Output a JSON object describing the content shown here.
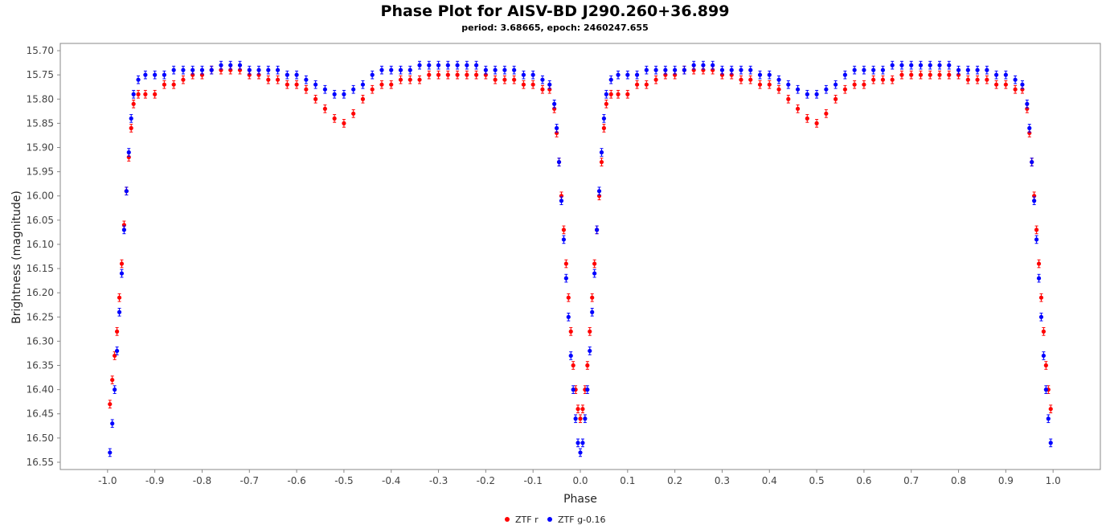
{
  "chart_data": {
    "type": "scatter",
    "title": "Phase Plot for AISV-BD J290.260+36.899",
    "subtitle": "period: 3.68665, epoch: 2460247.655",
    "xlabel": "Phase",
    "ylabel": "Brightness (magnitude)",
    "xlim": [
      -1.1,
      1.1
    ],
    "ylim": [
      16.565,
      15.685
    ],
    "y_inverted": true,
    "x_ticks": [
      -1.0,
      -0.9,
      -0.8,
      -0.7,
      -0.6,
      -0.5,
      -0.4,
      -0.3,
      -0.2,
      -0.1,
      0.0,
      0.1,
      0.2,
      0.3,
      0.4,
      0.5,
      0.6,
      0.7,
      0.8,
      0.9,
      1.0
    ],
    "x_tick_labels": [
      "-1.0",
      "-0.9",
      "-0.8",
      "-0.7",
      "-0.6",
      "-0.5",
      "-0.4",
      "-0.3",
      "-0.2",
      "-0.1",
      "0.0",
      "0.1",
      "0.2",
      "0.3",
      "0.4",
      "0.5",
      "0.6",
      "0.7",
      "0.8",
      "0.9",
      "1.0"
    ],
    "y_ticks": [
      15.7,
      15.75,
      15.8,
      15.85,
      15.9,
      15.95,
      16.0,
      16.05,
      16.1,
      16.15,
      16.2,
      16.25,
      16.3,
      16.35,
      16.4,
      16.45,
      16.5,
      16.55
    ],
    "y_tick_labels": [
      "15.70",
      "15.75",
      "15.80",
      "15.85",
      "15.90",
      "15.95",
      "16.00",
      "16.05",
      "16.10",
      "16.15",
      "16.20",
      "16.25",
      "16.30",
      "16.35",
      "16.40",
      "16.45",
      "16.50",
      "16.55"
    ],
    "grid": false,
    "legend_position": "bottom-center",
    "series": [
      {
        "name": "ZTF r",
        "color": "#ff0000",
        "error": 0.008,
        "points": [
          [
            -0.995,
            16.43
          ],
          [
            -0.99,
            16.38
          ],
          [
            -0.985,
            16.33
          ],
          [
            -0.98,
            16.28
          ],
          [
            -0.975,
            16.21
          ],
          [
            -0.97,
            16.14
          ],
          [
            -0.965,
            16.06
          ],
          [
            -0.96,
            15.99
          ],
          [
            -0.955,
            15.92
          ],
          [
            -0.95,
            15.86
          ],
          [
            -0.945,
            15.81
          ],
          [
            -0.935,
            15.79
          ],
          [
            -0.92,
            15.79
          ],
          [
            -0.9,
            15.79
          ],
          [
            -0.88,
            15.77
          ],
          [
            -0.86,
            15.77
          ],
          [
            -0.84,
            15.76
          ],
          [
            -0.82,
            15.75
          ],
          [
            -0.8,
            15.75
          ],
          [
            -0.78,
            15.74
          ],
          [
            -0.76,
            15.74
          ],
          [
            -0.74,
            15.74
          ],
          [
            -0.72,
            15.74
          ],
          [
            -0.7,
            15.75
          ],
          [
            -0.68,
            15.75
          ],
          [
            -0.66,
            15.76
          ],
          [
            -0.64,
            15.76
          ],
          [
            -0.62,
            15.77
          ],
          [
            -0.6,
            15.77
          ],
          [
            -0.58,
            15.78
          ],
          [
            -0.56,
            15.8
          ],
          [
            -0.54,
            15.82
          ],
          [
            -0.52,
            15.84
          ],
          [
            -0.5,
            15.85
          ],
          [
            -0.48,
            15.83
          ],
          [
            -0.46,
            15.8
          ],
          [
            -0.44,
            15.78
          ],
          [
            -0.42,
            15.77
          ],
          [
            -0.4,
            15.77
          ],
          [
            -0.38,
            15.76
          ],
          [
            -0.36,
            15.76
          ],
          [
            -0.34,
            15.76
          ],
          [
            -0.32,
            15.75
          ],
          [
            -0.3,
            15.75
          ],
          [
            -0.28,
            15.75
          ],
          [
            -0.26,
            15.75
          ],
          [
            -0.24,
            15.75
          ],
          [
            -0.22,
            15.75
          ],
          [
            -0.2,
            15.75
          ],
          [
            -0.18,
            15.76
          ],
          [
            -0.16,
            15.76
          ],
          [
            -0.14,
            15.76
          ],
          [
            -0.12,
            15.77
          ],
          [
            -0.1,
            15.77
          ],
          [
            -0.08,
            15.78
          ],
          [
            -0.065,
            15.78
          ],
          [
            -0.055,
            15.82
          ],
          [
            -0.05,
            15.87
          ],
          [
            -0.045,
            15.93
          ],
          [
            -0.04,
            16.0
          ],
          [
            -0.035,
            16.07
          ],
          [
            -0.03,
            16.14
          ],
          [
            -0.025,
            16.21
          ],
          [
            -0.02,
            16.28
          ],
          [
            -0.015,
            16.35
          ],
          [
            -0.01,
            16.4
          ],
          [
            -0.005,
            16.44
          ],
          [
            0.0,
            16.46
          ],
          [
            0.005,
            16.44
          ],
          [
            0.01,
            16.4
          ],
          [
            0.015,
            16.35
          ],
          [
            0.02,
            16.28
          ],
          [
            0.025,
            16.21
          ],
          [
            0.03,
            16.14
          ],
          [
            0.035,
            16.07
          ],
          [
            0.04,
            16.0
          ],
          [
            0.045,
            15.93
          ],
          [
            0.05,
            15.86
          ],
          [
            0.055,
            15.81
          ],
          [
            0.065,
            15.79
          ],
          [
            0.08,
            15.79
          ],
          [
            0.1,
            15.79
          ],
          [
            0.12,
            15.77
          ],
          [
            0.14,
            15.77
          ],
          [
            0.16,
            15.76
          ],
          [
            0.18,
            15.75
          ],
          [
            0.2,
            15.75
          ],
          [
            0.22,
            15.74
          ],
          [
            0.24,
            15.74
          ],
          [
            0.26,
            15.74
          ],
          [
            0.28,
            15.74
          ],
          [
            0.3,
            15.75
          ],
          [
            0.32,
            15.75
          ],
          [
            0.34,
            15.76
          ],
          [
            0.36,
            15.76
          ],
          [
            0.38,
            15.77
          ],
          [
            0.4,
            15.77
          ],
          [
            0.42,
            15.78
          ],
          [
            0.44,
            15.8
          ],
          [
            0.46,
            15.82
          ],
          [
            0.48,
            15.84
          ],
          [
            0.5,
            15.85
          ],
          [
            0.52,
            15.83
          ],
          [
            0.54,
            15.8
          ],
          [
            0.56,
            15.78
          ],
          [
            0.58,
            15.77
          ],
          [
            0.6,
            15.77
          ],
          [
            0.62,
            15.76
          ],
          [
            0.64,
            15.76
          ],
          [
            0.66,
            15.76
          ],
          [
            0.68,
            15.75
          ],
          [
            0.7,
            15.75
          ],
          [
            0.72,
            15.75
          ],
          [
            0.74,
            15.75
          ],
          [
            0.76,
            15.75
          ],
          [
            0.78,
            15.75
          ],
          [
            0.8,
            15.75
          ],
          [
            0.82,
            15.76
          ],
          [
            0.84,
            15.76
          ],
          [
            0.86,
            15.76
          ],
          [
            0.88,
            15.77
          ],
          [
            0.9,
            15.77
          ],
          [
            0.92,
            15.78
          ],
          [
            0.935,
            15.78
          ],
          [
            0.945,
            15.82
          ],
          [
            0.95,
            15.87
          ],
          [
            0.955,
            15.93
          ],
          [
            0.96,
            16.0
          ],
          [
            0.965,
            16.07
          ],
          [
            0.97,
            16.14
          ],
          [
            0.975,
            16.21
          ],
          [
            0.98,
            16.28
          ],
          [
            0.985,
            16.35
          ],
          [
            0.99,
            16.4
          ],
          [
            0.995,
            16.44
          ]
        ]
      },
      {
        "name": "ZTF g-0.16",
        "color": "#0000ff",
        "error": 0.008,
        "points": [
          [
            -0.995,
            16.53
          ],
          [
            -0.99,
            16.47
          ],
          [
            -0.985,
            16.4
          ],
          [
            -0.98,
            16.32
          ],
          [
            -0.975,
            16.24
          ],
          [
            -0.97,
            16.16
          ],
          [
            -0.965,
            16.07
          ],
          [
            -0.96,
            15.99
          ],
          [
            -0.955,
            15.91
          ],
          [
            -0.95,
            15.84
          ],
          [
            -0.945,
            15.79
          ],
          [
            -0.935,
            15.76
          ],
          [
            -0.92,
            15.75
          ],
          [
            -0.9,
            15.75
          ],
          [
            -0.88,
            15.75
          ],
          [
            -0.86,
            15.74
          ],
          [
            -0.84,
            15.74
          ],
          [
            -0.82,
            15.74
          ],
          [
            -0.8,
            15.74
          ],
          [
            -0.78,
            15.74
          ],
          [
            -0.76,
            15.73
          ],
          [
            -0.74,
            15.73
          ],
          [
            -0.72,
            15.73
          ],
          [
            -0.7,
            15.74
          ],
          [
            -0.68,
            15.74
          ],
          [
            -0.66,
            15.74
          ],
          [
            -0.64,
            15.74
          ],
          [
            -0.62,
            15.75
          ],
          [
            -0.6,
            15.75
          ],
          [
            -0.58,
            15.76
          ],
          [
            -0.56,
            15.77
          ],
          [
            -0.54,
            15.78
          ],
          [
            -0.52,
            15.79
          ],
          [
            -0.5,
            15.79
          ],
          [
            -0.48,
            15.78
          ],
          [
            -0.46,
            15.77
          ],
          [
            -0.44,
            15.75
          ],
          [
            -0.42,
            15.74
          ],
          [
            -0.4,
            15.74
          ],
          [
            -0.38,
            15.74
          ],
          [
            -0.36,
            15.74
          ],
          [
            -0.34,
            15.73
          ],
          [
            -0.32,
            15.73
          ],
          [
            -0.3,
            15.73
          ],
          [
            -0.28,
            15.73
          ],
          [
            -0.26,
            15.73
          ],
          [
            -0.24,
            15.73
          ],
          [
            -0.22,
            15.73
          ],
          [
            -0.2,
            15.74
          ],
          [
            -0.18,
            15.74
          ],
          [
            -0.16,
            15.74
          ],
          [
            -0.14,
            15.74
          ],
          [
            -0.12,
            15.75
          ],
          [
            -0.1,
            15.75
          ],
          [
            -0.08,
            15.76
          ],
          [
            -0.065,
            15.77
          ],
          [
            -0.055,
            15.81
          ],
          [
            -0.05,
            15.86
          ],
          [
            -0.045,
            15.93
          ],
          [
            -0.04,
            16.01
          ],
          [
            -0.035,
            16.09
          ],
          [
            -0.03,
            16.17
          ],
          [
            -0.025,
            16.25
          ],
          [
            -0.02,
            16.33
          ],
          [
            -0.015,
            16.4
          ],
          [
            -0.01,
            16.46
          ],
          [
            -0.005,
            16.51
          ],
          [
            0.0,
            16.53
          ],
          [
            0.005,
            16.51
          ],
          [
            0.01,
            16.46
          ],
          [
            0.015,
            16.4
          ],
          [
            0.02,
            16.32
          ],
          [
            0.025,
            16.24
          ],
          [
            0.03,
            16.16
          ],
          [
            0.035,
            16.07
          ],
          [
            0.04,
            15.99
          ],
          [
            0.045,
            15.91
          ],
          [
            0.05,
            15.84
          ],
          [
            0.055,
            15.79
          ],
          [
            0.065,
            15.76
          ],
          [
            0.08,
            15.75
          ],
          [
            0.1,
            15.75
          ],
          [
            0.12,
            15.75
          ],
          [
            0.14,
            15.74
          ],
          [
            0.16,
            15.74
          ],
          [
            0.18,
            15.74
          ],
          [
            0.2,
            15.74
          ],
          [
            0.22,
            15.74
          ],
          [
            0.24,
            15.73
          ],
          [
            0.26,
            15.73
          ],
          [
            0.28,
            15.73
          ],
          [
            0.3,
            15.74
          ],
          [
            0.32,
            15.74
          ],
          [
            0.34,
            15.74
          ],
          [
            0.36,
            15.74
          ],
          [
            0.38,
            15.75
          ],
          [
            0.4,
            15.75
          ],
          [
            0.42,
            15.76
          ],
          [
            0.44,
            15.77
          ],
          [
            0.46,
            15.78
          ],
          [
            0.48,
            15.79
          ],
          [
            0.5,
            15.79
          ],
          [
            0.52,
            15.78
          ],
          [
            0.54,
            15.77
          ],
          [
            0.56,
            15.75
          ],
          [
            0.58,
            15.74
          ],
          [
            0.6,
            15.74
          ],
          [
            0.62,
            15.74
          ],
          [
            0.64,
            15.74
          ],
          [
            0.66,
            15.73
          ],
          [
            0.68,
            15.73
          ],
          [
            0.7,
            15.73
          ],
          [
            0.72,
            15.73
          ],
          [
            0.74,
            15.73
          ],
          [
            0.76,
            15.73
          ],
          [
            0.78,
            15.73
          ],
          [
            0.8,
            15.74
          ],
          [
            0.82,
            15.74
          ],
          [
            0.84,
            15.74
          ],
          [
            0.86,
            15.74
          ],
          [
            0.88,
            15.75
          ],
          [
            0.9,
            15.75
          ],
          [
            0.92,
            15.76
          ],
          [
            0.935,
            15.77
          ],
          [
            0.945,
            15.81
          ],
          [
            0.95,
            15.86
          ],
          [
            0.955,
            15.93
          ],
          [
            0.96,
            16.01
          ],
          [
            0.965,
            16.09
          ],
          [
            0.97,
            16.17
          ],
          [
            0.975,
            16.25
          ],
          [
            0.98,
            16.33
          ],
          [
            0.985,
            16.4
          ],
          [
            0.99,
            16.46
          ],
          [
            0.995,
            16.51
          ]
        ]
      }
    ]
  }
}
